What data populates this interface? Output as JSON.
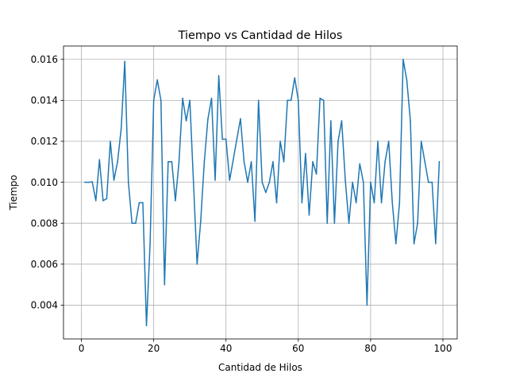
{
  "chart_data": {
    "type": "line",
    "title": "Tiempo vs Cantidad de Hilos",
    "xlabel": "Cantidad de Hilos",
    "ylabel": "Tiempo",
    "xlim": [
      -4.95,
      103.95
    ],
    "ylim": [
      0.00235,
      0.01665
    ],
    "xticks": [
      0,
      20,
      40,
      60,
      80,
      100
    ],
    "xtick_labels": [
      "0",
      "20",
      "40",
      "60",
      "80",
      "100"
    ],
    "yticks": [
      0.004,
      0.006,
      0.008,
      0.01,
      0.012,
      0.014,
      0.016
    ],
    "ytick_labels": [
      "0.004",
      "0.006",
      "0.008",
      "0.010",
      "0.012",
      "0.014",
      "0.016"
    ],
    "grid": true,
    "series": [
      {
        "color": "#1f77b4",
        "x": [
          1,
          2,
          3,
          4,
          5,
          6,
          7,
          8,
          9,
          10,
          11,
          12,
          13,
          14,
          15,
          16,
          17,
          18,
          19,
          20,
          21,
          22,
          23,
          24,
          25,
          26,
          27,
          28,
          29,
          30,
          31,
          32,
          33,
          34,
          35,
          36,
          37,
          38,
          39,
          40,
          41,
          42,
          43,
          44,
          45,
          46,
          47,
          48,
          49,
          50,
          51,
          52,
          53,
          54,
          55,
          56,
          57,
          58,
          59,
          60,
          61,
          62,
          63,
          64,
          65,
          66,
          67,
          68,
          69,
          70,
          71,
          72,
          73,
          74,
          75,
          76,
          77,
          78,
          79,
          80,
          81,
          82,
          83,
          84,
          85,
          86,
          87,
          88,
          89,
          90,
          91,
          92,
          93,
          94,
          95,
          96,
          97,
          98,
          99
        ],
        "y": [
          0.01,
          0.01,
          0.01002,
          0.0091,
          0.0111,
          0.0091,
          0.0092,
          0.012,
          0.0101,
          0.011,
          0.0126,
          0.0159,
          0.01,
          0.008,
          0.008,
          0.009,
          0.009,
          0.003,
          0.007,
          0.014,
          0.015,
          0.014,
          0.005,
          0.011,
          0.011,
          0.0091,
          0.011,
          0.0141,
          0.013,
          0.014,
          0.01,
          0.006,
          0.0081,
          0.011,
          0.0131,
          0.0141,
          0.0101,
          0.0152,
          0.0121,
          0.0121,
          0.0101,
          0.0111,
          0.0121,
          0.0131,
          0.011,
          0.01,
          0.011,
          0.0081,
          0.014,
          0.01,
          0.0095,
          0.01,
          0.011,
          0.009,
          0.012,
          0.011,
          0.014,
          0.014,
          0.0151,
          0.014,
          0.009,
          0.0114,
          0.0084,
          0.011,
          0.0104,
          0.0141,
          0.014,
          0.008,
          0.013,
          0.008,
          0.012,
          0.013,
          0.0101,
          0.008,
          0.01,
          0.009,
          0.0109,
          0.01,
          0.004,
          0.01,
          0.009,
          0.012,
          0.009,
          0.011,
          0.012,
          0.009,
          0.007,
          0.009,
          0.016,
          0.015,
          0.013,
          0.007,
          0.008,
          0.012,
          0.011,
          0.01,
          0.01,
          0.007,
          0.011
        ]
      }
    ]
  }
}
